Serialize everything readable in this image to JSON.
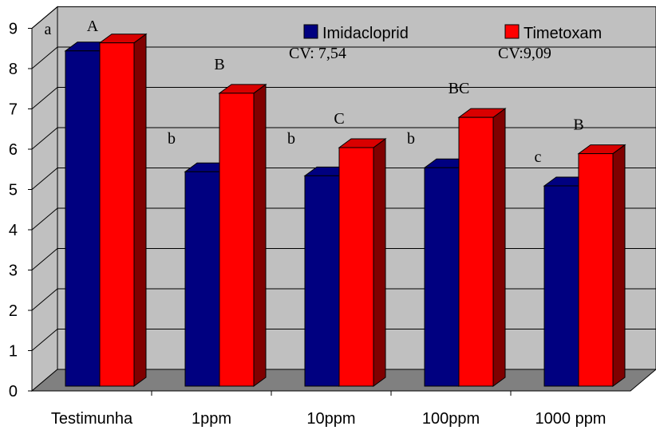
{
  "chart_data": {
    "type": "bar",
    "categories": [
      "Testimunha",
      "1ppm",
      "10ppm",
      "100ppm",
      "1000 ppm"
    ],
    "series": [
      {
        "name": "Imidacloprid",
        "color": "#000080",
        "values": [
          8.4,
          5.4,
          5.3,
          5.5,
          5.05
        ],
        "letters": [
          "a",
          "b",
          "b",
          "b",
          "c"
        ]
      },
      {
        "name": "Timetoxam",
        "color": "#ff0000",
        "values": [
          8.6,
          7.35,
          6.0,
          6.75,
          5.85
        ],
        "letters": [
          "A",
          "B",
          "C",
          "BC",
          "B"
        ]
      }
    ],
    "cv_labels": [
      "CV: 7,54",
      "CV:9,09"
    ],
    "yticks": [
      "0",
      "1",
      "2",
      "3",
      "4",
      "5",
      "6",
      "7",
      "8",
      "9"
    ],
    "ylim": [
      0,
      9
    ],
    "grid": true,
    "legend": "top-right"
  }
}
